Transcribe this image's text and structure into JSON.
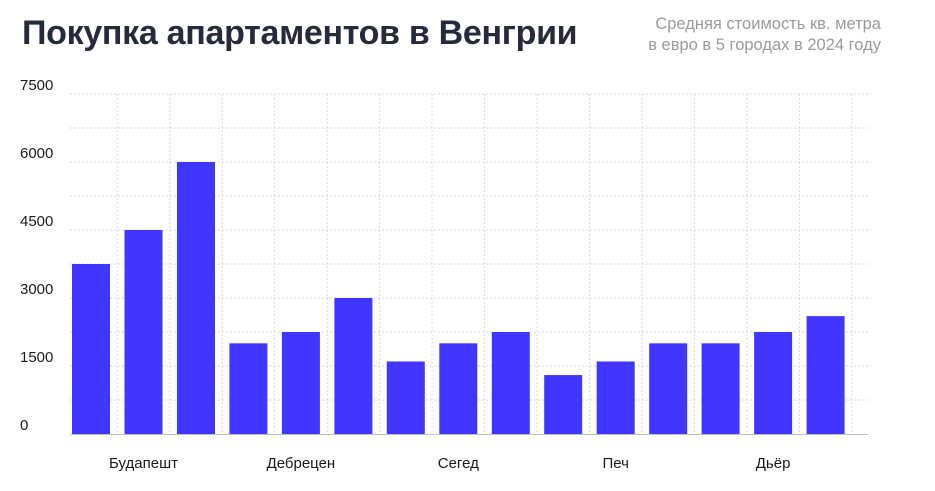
{
  "header": {
    "title": "Покупка апартаментов в Венгрии",
    "subtitle_lines": [
      "Средняя стоимость кв. метра",
      "в евро в 5 городах в 2024 году"
    ]
  },
  "colors": {
    "bar": "#4136ff",
    "grid": "#d9d9d9",
    "axis": "#bfbfbf"
  },
  "chart_data": {
    "type": "bar",
    "title": "Покупка апартаментов в Венгрии",
    "subtitle": "Средняя стоимость кв. метра в евро в 5 городах в 2024 году",
    "categories": [
      "Будапешт",
      "Дебрецен",
      "Сегед",
      "Печ",
      "Дьёр"
    ],
    "bars_per_category": 3,
    "values": [
      [
        3750,
        4500,
        6000
      ],
      [
        2000,
        2250,
        3000
      ],
      [
        1600,
        2000,
        2250
      ],
      [
        1300,
        1600,
        2000
      ],
      [
        2000,
        2250,
        2600
      ]
    ],
    "yticks": [
      0,
      1500,
      3000,
      4500,
      6000,
      7500
    ],
    "ylim": [
      0,
      7500
    ],
    "grid": true,
    "legend": "none"
  }
}
